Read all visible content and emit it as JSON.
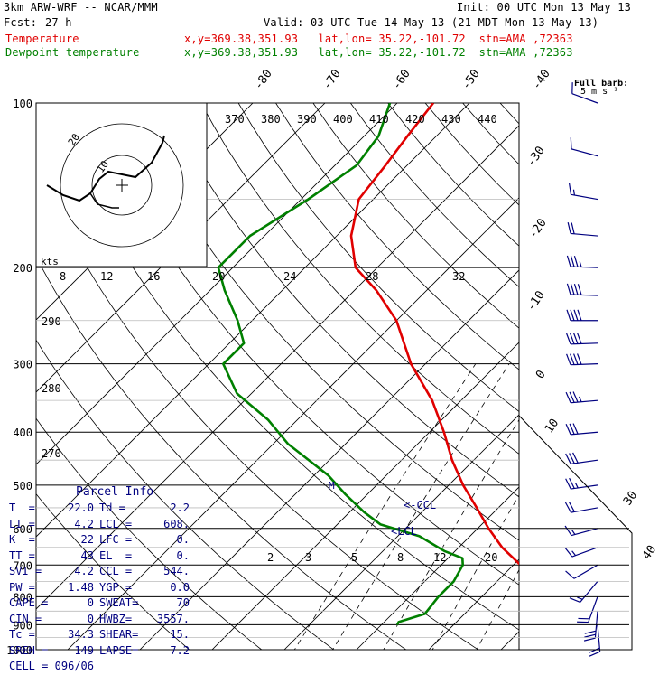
{
  "header": {
    "model": "3km ARW-WRF -- NCAR/MMM",
    "init": "Init: 00 UTC Mon 13 May 13",
    "fcst_label": "Fcst:",
    "fcst_value": "27 h",
    "valid": "Valid: 03 UTC Tue 14 May 13 (21 MDT Mon 13 May 13)",
    "temp_label": "Temperature",
    "temp_loc": "x,y=369.38,351.93   lat,lon= 35.22,-101.72  stn=AMA ,72363",
    "dew_label": "Dewpoint temperature",
    "dew_loc": "x,y=369.38,351.93   lat,lon= 35.22,-101.72  stn=AMA ,72363"
  },
  "colors": {
    "temperature": "#e00000",
    "dewpoint": "#008000",
    "panel_text": "#000080",
    "grid": "#000000",
    "wind_barbs": "#000080"
  },
  "chart_data": {
    "type": "line",
    "subtype": "skew-t log-p",
    "y_axis": "pressure (hPa), log scale",
    "ylim": [
      1000,
      100
    ],
    "pressure_labels": [
      "100",
      "200",
      "300",
      "400",
      "500",
      "600",
      "700",
      "800",
      "900",
      "1000"
    ],
    "temperature_labels": [
      "-80",
      "-70",
      "-60",
      "-50",
      "-40",
      "-30",
      "-20",
      "-10",
      "0",
      "10",
      "30",
      "40"
    ],
    "theta_labels": [
      "370",
      "380",
      "390",
      "400",
      "410",
      "420",
      "430",
      "440"
    ],
    "theta_side_labels": [
      "290",
      "280",
      "270"
    ],
    "mixing_ratio_labels": [
      "2",
      "3",
      "5",
      "8",
      "12",
      "20"
    ],
    "hodograph_speed_labels": [
      "8",
      "12",
      "16",
      "20",
      "24",
      "28",
      "32"
    ],
    "hodograph_ring_labels": [
      "10",
      "20"
    ],
    "hodograph_units": "kts",
    "barb_legend": "Full barb:",
    "barb_legend_units": "5 m s⁻¹",
    "parcel_markers": [
      "<-CCL",
      "<LCL",
      "M"
    ],
    "series": [
      {
        "name": "Temperature",
        "color": "#e00000",
        "points": [
          [
            901,
            22.0
          ],
          [
            900,
            24.5
          ],
          [
            870,
            26.0
          ],
          [
            850,
            22.5
          ],
          [
            800,
            19.0
          ],
          [
            750,
            15.0
          ],
          [
            700,
            11.0
          ],
          [
            650,
            6.0
          ],
          [
            600,
            1.5
          ],
          [
            550,
            -3.0
          ],
          [
            500,
            -8.0
          ],
          [
            450,
            -13.0
          ],
          [
            400,
            -18.0
          ],
          [
            350,
            -24.0
          ],
          [
            300,
            -32.0
          ],
          [
            250,
            -40.0
          ],
          [
            220,
            -47.0
          ],
          [
            200,
            -53.0
          ],
          [
            175,
            -58.0
          ],
          [
            150,
            -62.0
          ],
          [
            130,
            -63.0
          ],
          [
            115,
            -64.0
          ],
          [
            100,
            -65.0
          ]
        ]
      },
      {
        "name": "Dewpoint temperature",
        "color": "#008000",
        "points": [
          [
            901,
            2.2
          ],
          [
            890,
            2.0
          ],
          [
            860,
            4.5
          ],
          [
            800,
            4.0
          ],
          [
            750,
            4.0
          ],
          [
            700,
            3.0
          ],
          [
            680,
            2.0
          ],
          [
            660,
            -1.5
          ],
          [
            620,
            -7.0
          ],
          [
            590,
            -14.0
          ],
          [
            560,
            -18.0
          ],
          [
            520,
            -23.0
          ],
          [
            480,
            -28.0
          ],
          [
            420,
            -38.0
          ],
          [
            380,
            -44.0
          ],
          [
            340,
            -52.0
          ],
          [
            300,
            -58.0
          ],
          [
            275,
            -58.0
          ],
          [
            250,
            -62.0
          ],
          [
            220,
            -68.0
          ],
          [
            200,
            -72.0
          ],
          [
            175,
            -72.0
          ],
          [
            150,
            -69.0
          ],
          [
            130,
            -67.0
          ],
          [
            115,
            -68.0
          ],
          [
            100,
            -71.0
          ]
        ]
      }
    ]
  },
  "winds": [
    {
      "p": 900,
      "spd": 10,
      "dir": 175
    },
    {
      "p": 850,
      "spd": 15,
      "dir": 185
    },
    {
      "p": 800,
      "spd": 12,
      "dir": 200
    },
    {
      "p": 750,
      "spd": 8,
      "dir": 220
    },
    {
      "p": 700,
      "spd": 7,
      "dir": 240
    },
    {
      "p": 650,
      "spd": 8,
      "dir": 250
    },
    {
      "p": 600,
      "spd": 9,
      "dir": 255
    },
    {
      "p": 550,
      "spd": 11,
      "dir": 260
    },
    {
      "p": 500,
      "spd": 13,
      "dir": 262
    },
    {
      "p": 450,
      "spd": 15,
      "dir": 262
    },
    {
      "p": 400,
      "spd": 17,
      "dir": 265
    },
    {
      "p": 350,
      "spd": 19,
      "dir": 265
    },
    {
      "p": 300,
      "spd": 21,
      "dir": 268
    },
    {
      "p": 275,
      "spd": 22,
      "dir": 268
    },
    {
      "p": 250,
      "spd": 22,
      "dir": 270
    },
    {
      "p": 225,
      "spd": 20,
      "dir": 272
    },
    {
      "p": 200,
      "spd": 18,
      "dir": 272
    },
    {
      "p": 175,
      "spd": 12,
      "dir": 275
    },
    {
      "p": 150,
      "spd": 8,
      "dir": 280
    },
    {
      "p": 125,
      "spd": 6,
      "dir": 285
    },
    {
      "p": 100,
      "spd": 5,
      "dir": 290
    }
  ],
  "parcel_info": {
    "title": "Parcel Info",
    "rows": [
      {
        "k1": "T  =",
        "v1": "22.0",
        "k2": "Td =",
        "v2": "2.2"
      },
      {
        "k1": "LI =",
        "v1": "4.2",
        "k2": "LCL =",
        "v2": "608."
      },
      {
        "k1": "K  =",
        "v1": "22",
        "k2": "LFC =",
        "v2": "0."
      },
      {
        "k1": "TT =",
        "v1": "43",
        "k2": "EL  =",
        "v2": "0."
      },
      {
        "k1": "SVI =",
        "v1": "4.2",
        "k2": "CCL =",
        "v2": "544."
      },
      {
        "k1": "PW =",
        "v1": "1.48",
        "k2": "YGP =",
        "v2": "0.0"
      },
      {
        "k1": "CAPE =",
        "v1": "0",
        "k2": "SWEAT=",
        "v2": "70"
      },
      {
        "k1": "CIN =",
        "v1": "0",
        "k2": "HWBZ=",
        "v2": "3557."
      },
      {
        "k1": "Tc =",
        "v1": "34.3",
        "k2": "SHEAR=",
        "v2": "15."
      },
      {
        "k1": "SREH =",
        "v1": "149",
        "k2": "LAPSE=",
        "v2": "7.2"
      },
      {
        "k1": "CELL =",
        "v1": "096/06",
        "k2": "",
        "v2": ""
      }
    ]
  }
}
